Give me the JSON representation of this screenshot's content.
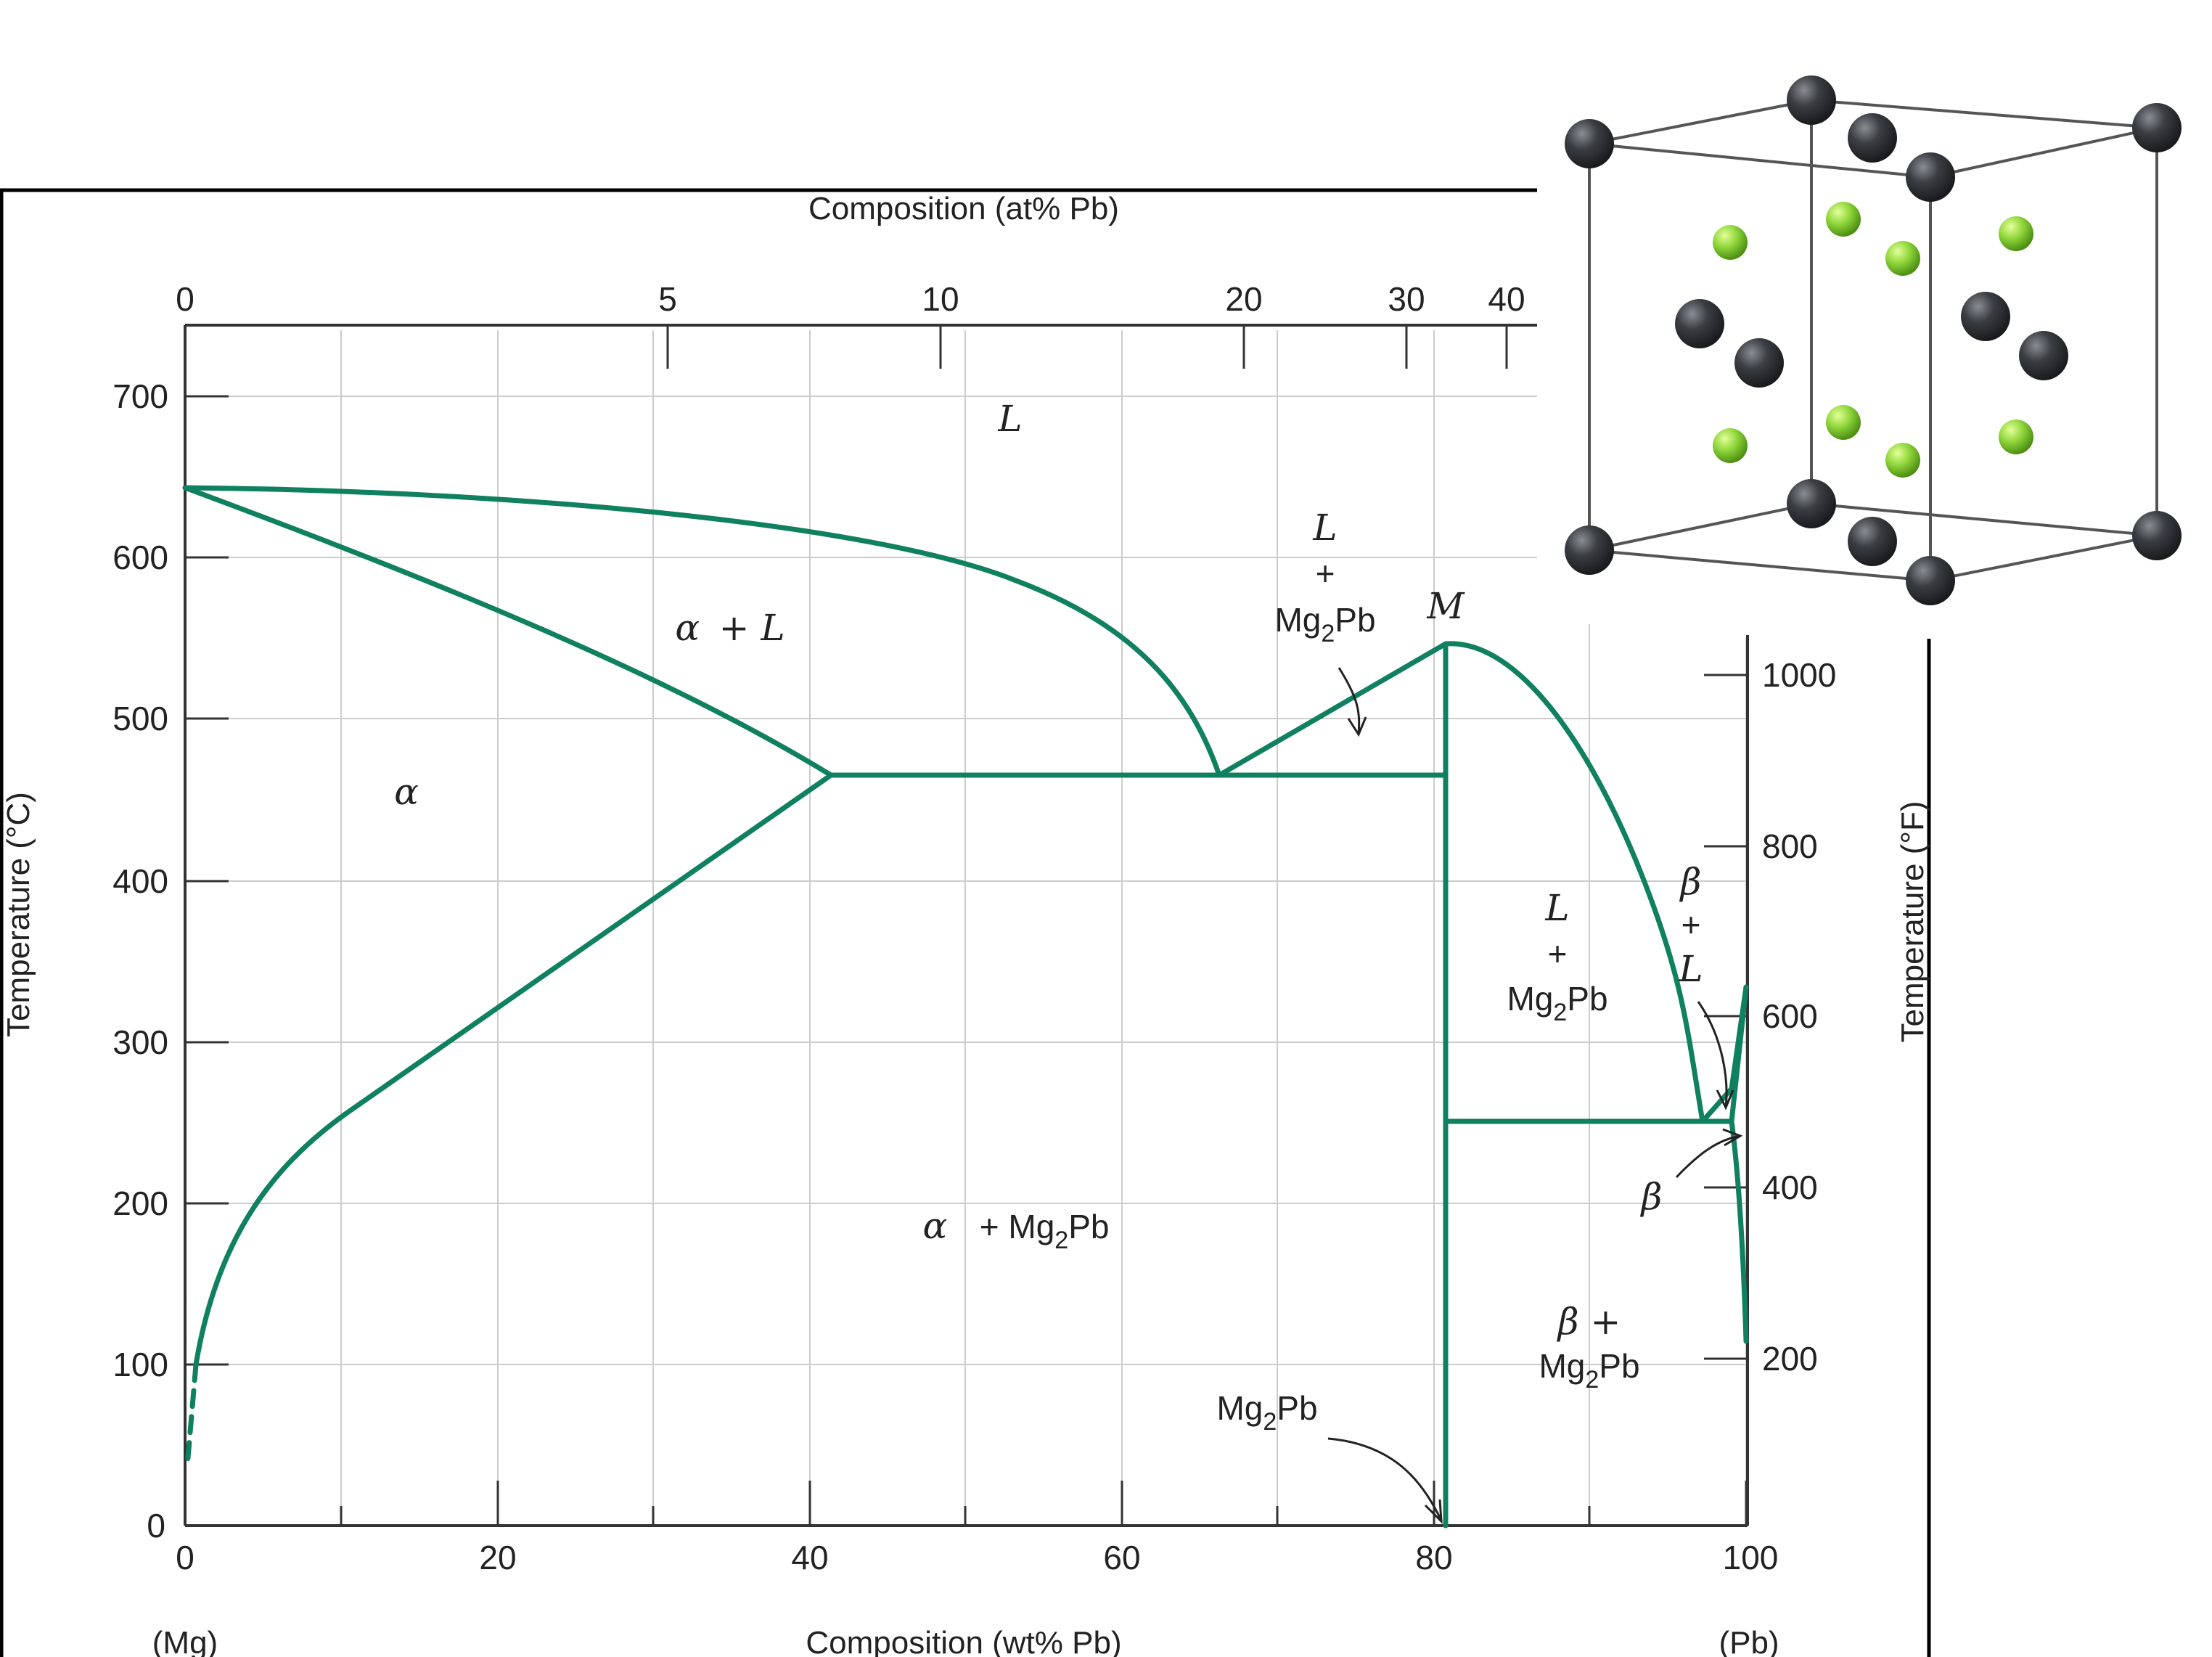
{
  "diagram": {
    "top_axis_title": "Composition (at% Pb)",
    "bottom_axis_title": "Composition (wt% Pb)",
    "left_axis_title": "Temperature (°C)",
    "right_axis_title": "Temperature (°F)",
    "left_end_label": "(Mg)",
    "right_end_label": "(Pb)",
    "x_ticks": [
      "0",
      "20",
      "40",
      "60",
      "80",
      "100"
    ],
    "y_ticks": [
      "0",
      "100",
      "200",
      "300",
      "400",
      "500",
      "600",
      "700"
    ],
    "top_ticks": [
      "0",
      "5",
      "10",
      "20",
      "30",
      "40"
    ],
    "right_ticks": [
      "200",
      "400",
      "600",
      "800",
      "1000"
    ],
    "phases": {
      "liquid": "L",
      "alpha": "α",
      "alpha_plus_liquid": {
        "sym1": "α",
        "sym2": "+ L"
      },
      "liquid_plus_mg2pb_left": {
        "sym": "L",
        "plus": "+",
        "mg": "Mg",
        "sub": "2",
        "pb": "Pb"
      },
      "liquid_plus_mg2pb_right": {
        "sym": "L",
        "plus": "+",
        "mg": "Mg",
        "sub": "2",
        "pb": "Pb"
      },
      "alpha_plus_mg2pb": {
        "sym": "α",
        "mg": "+ Mg",
        "sub": "2",
        "pb": "Pb"
      },
      "beta_plus_liquid": {
        "beta": "β",
        "plus": "+",
        "l": "L"
      },
      "beta": "β",
      "beta_plus_mg2pb": {
        "sym": "β +",
        "mg": "Mg",
        "sub": "2",
        "pb": "Pb"
      },
      "compound": {
        "mg": "Mg",
        "sub": "2",
        "pb": "Pb"
      },
      "maximum": "M"
    }
  },
  "colors": {
    "phase_line": "#0f8060",
    "grid": "#cccccc",
    "axis": "#333333",
    "atom_dark": "#3a3d42",
    "atom_green": "#8fd63a"
  }
}
